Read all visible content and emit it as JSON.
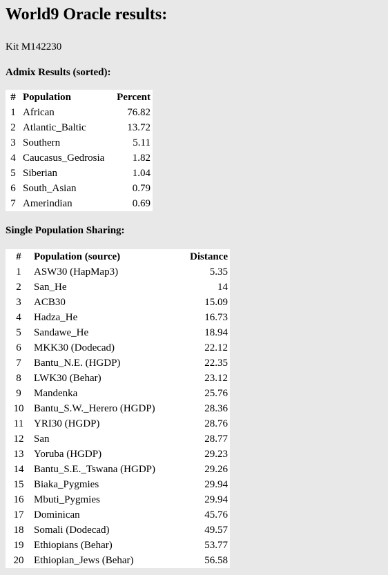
{
  "title": "World9 Oracle results:",
  "kit": "Kit M142230",
  "admix": {
    "heading": "Admix Results (sorted):",
    "columns": [
      "#",
      "Population",
      "Percent"
    ],
    "rows": [
      [
        "1",
        "African",
        "76.82"
      ],
      [
        "2",
        "Atlantic_Baltic",
        "13.72"
      ],
      [
        "3",
        "Southern",
        "5.11"
      ],
      [
        "4",
        "Caucasus_Gedrosia",
        "1.82"
      ],
      [
        "5",
        "Siberian",
        "1.04"
      ],
      [
        "6",
        "South_Asian",
        "0.79"
      ],
      [
        "7",
        "Amerindian",
        "0.69"
      ]
    ]
  },
  "single": {
    "heading": "Single Population Sharing:",
    "columns": [
      "#",
      "Population (source)",
      "Distance"
    ],
    "rows": [
      [
        "1",
        "ASW30 (HapMap3)",
        "5.35"
      ],
      [
        "2",
        "San_He",
        "14"
      ],
      [
        "3",
        "ACB30",
        "15.09"
      ],
      [
        "4",
        "Hadza_He",
        "16.73"
      ],
      [
        "5",
        "Sandawe_He",
        "18.94"
      ],
      [
        "6",
        "MKK30 (Dodecad)",
        "22.12"
      ],
      [
        "7",
        "Bantu_N.E. (HGDP)",
        "22.35"
      ],
      [
        "8",
        "LWK30 (Behar)",
        "23.12"
      ],
      [
        "9",
        "Mandenka",
        "25.76"
      ],
      [
        "10",
        "Bantu_S.W._Herero (HGDP)",
        "28.36"
      ],
      [
        "11",
        "YRI30 (HGDP)",
        "28.76"
      ],
      [
        "12",
        "San",
        "28.77"
      ],
      [
        "13",
        "Yoruba (HGDP)",
        "29.23"
      ],
      [
        "14",
        "Bantu_S.E._Tswana (HGDP)",
        "29.26"
      ],
      [
        "15",
        "Biaka_Pygmies",
        "29.94"
      ],
      [
        "16",
        "Mbuti_Pygmies",
        "29.94"
      ],
      [
        "17",
        "Dominican",
        "45.76"
      ],
      [
        "18",
        "Somali (Dodecad)",
        "49.57"
      ],
      [
        "19",
        "Ethiopians (Behar)",
        "53.77"
      ],
      [
        "20",
        "Ethiopian_Jews (Behar)",
        "56.58"
      ]
    ]
  }
}
